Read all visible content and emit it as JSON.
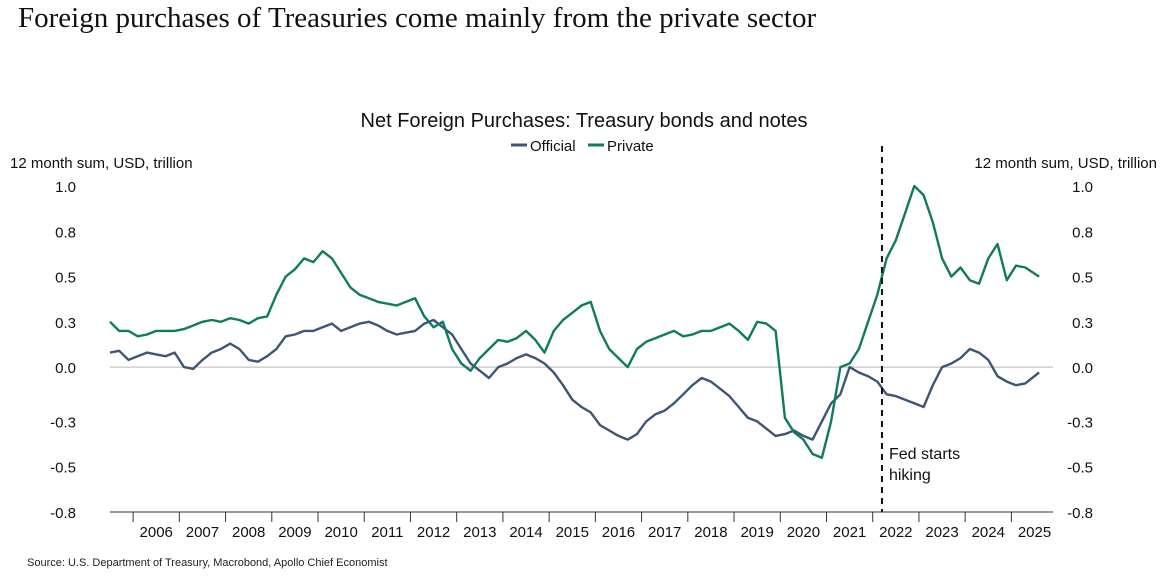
{
  "headline": "Foreign purchases of Treasuries come mainly from the private sector",
  "source": "Source: U.S. Department of Treasury, Macrobond, Apollo Chief Economist",
  "colors": {
    "official": "#3e5673",
    "private": "#0f7b5f",
    "zero_line": "#b8b8b8",
    "text": "#111111"
  },
  "chart_data": {
    "type": "line",
    "title": "Net Foreign Purchases: Treasury bonds and notes",
    "ylabel_left": "12 month sum, USD, trillion",
    "ylabel_right": "12 month sum, USD, trillion",
    "ylim": [
      -0.8,
      1.0
    ],
    "xlim": [
      2005.5,
      2025.9
    ],
    "y_ticks": [
      -0.8,
      -0.55,
      -0.3,
      0.0,
      0.25,
      0.5,
      0.75,
      1.0
    ],
    "y_tick_labels": [
      "-0.8",
      "-0.5",
      "-0.3",
      "0.0",
      "0.3",
      "0.5",
      "0.8",
      "1.0"
    ],
    "x_tick_labels": [
      "2006",
      "2007",
      "2008",
      "2009",
      "2010",
      "2011",
      "2012",
      "2013",
      "2014",
      "2015",
      "2016",
      "2017",
      "2018",
      "2019",
      "2020",
      "2021",
      "2022",
      "2023",
      "2024",
      "2025"
    ],
    "grid": false,
    "legend": [
      "Official",
      "Private"
    ],
    "legend_position": "top-center",
    "annotation": {
      "text_lines": [
        "Fed starts",
        "hiking"
      ],
      "x": 2022.2
    },
    "series": [
      {
        "name": "Official",
        "x": [
          2005.5,
          2005.7,
          2005.9,
          2006.1,
          2006.3,
          2006.5,
          2006.7,
          2006.9,
          2007.1,
          2007.3,
          2007.5,
          2007.7,
          2007.9,
          2008.1,
          2008.3,
          2008.5,
          2008.7,
          2008.9,
          2009.1,
          2009.3,
          2009.5,
          2009.7,
          2009.9,
          2010.1,
          2010.3,
          2010.5,
          2010.7,
          2010.9,
          2011.1,
          2011.3,
          2011.5,
          2011.7,
          2011.9,
          2012.1,
          2012.3,
          2012.5,
          2012.7,
          2012.9,
          2013.1,
          2013.3,
          2013.5,
          2013.7,
          2013.9,
          2014.1,
          2014.3,
          2014.5,
          2014.7,
          2014.9,
          2015.1,
          2015.3,
          2015.5,
          2015.7,
          2015.9,
          2016.1,
          2016.3,
          2016.5,
          2016.7,
          2016.9,
          2017.1,
          2017.3,
          2017.5,
          2017.7,
          2017.9,
          2018.1,
          2018.3,
          2018.5,
          2018.7,
          2018.9,
          2019.1,
          2019.3,
          2019.5,
          2019.7,
          2019.9,
          2020.1,
          2020.3,
          2020.5,
          2020.7,
          2020.9,
          2021.1,
          2021.3,
          2021.5,
          2021.7,
          2021.9,
          2022.1,
          2022.3,
          2022.5,
          2022.7,
          2022.9,
          2023.1,
          2023.3,
          2023.5,
          2023.7,
          2023.9,
          2024.1,
          2024.3,
          2024.5,
          2024.7,
          2024.9,
          2025.1,
          2025.3,
          2025.6
        ],
        "values": [
          0.08,
          0.09,
          0.04,
          0.06,
          0.08,
          0.07,
          0.06,
          0.08,
          0.0,
          -0.01,
          0.04,
          0.08,
          0.1,
          0.13,
          0.1,
          0.04,
          0.03,
          0.06,
          0.1,
          0.17,
          0.18,
          0.2,
          0.2,
          0.22,
          0.24,
          0.2,
          0.22,
          0.24,
          0.25,
          0.23,
          0.2,
          0.18,
          0.19,
          0.2,
          0.24,
          0.26,
          0.22,
          0.18,
          0.1,
          0.02,
          -0.02,
          -0.06,
          0.0,
          0.02,
          0.05,
          0.07,
          0.05,
          0.02,
          -0.03,
          -0.1,
          -0.18,
          -0.22,
          -0.25,
          -0.32,
          -0.35,
          -0.38,
          -0.4,
          -0.37,
          -0.3,
          -0.26,
          -0.24,
          -0.2,
          -0.15,
          -0.1,
          -0.06,
          -0.08,
          -0.12,
          -0.16,
          -0.22,
          -0.28,
          -0.3,
          -0.34,
          -0.38,
          -0.37,
          -0.35,
          -0.38,
          -0.4,
          -0.3,
          -0.2,
          -0.15,
          0.0,
          -0.03,
          -0.05,
          -0.08,
          -0.15,
          -0.16,
          -0.18,
          -0.2,
          -0.22,
          -0.1,
          0.0,
          0.02,
          0.05,
          0.1,
          0.08,
          0.04,
          -0.05,
          -0.08,
          -0.1,
          -0.09,
          -0.03
        ]
      },
      {
        "name": "Private",
        "x": [
          2005.5,
          2005.7,
          2005.9,
          2006.1,
          2006.3,
          2006.5,
          2006.7,
          2006.9,
          2007.1,
          2007.3,
          2007.5,
          2007.7,
          2007.9,
          2008.1,
          2008.3,
          2008.5,
          2008.7,
          2008.9,
          2009.1,
          2009.3,
          2009.5,
          2009.7,
          2009.9,
          2010.1,
          2010.3,
          2010.5,
          2010.7,
          2010.9,
          2011.1,
          2011.3,
          2011.5,
          2011.7,
          2011.9,
          2012.1,
          2012.3,
          2012.5,
          2012.7,
          2012.9,
          2013.1,
          2013.3,
          2013.5,
          2013.7,
          2013.9,
          2014.1,
          2014.3,
          2014.5,
          2014.7,
          2014.9,
          2015.1,
          2015.3,
          2015.5,
          2015.7,
          2015.9,
          2016.1,
          2016.3,
          2016.5,
          2016.7,
          2016.9,
          2017.1,
          2017.3,
          2017.5,
          2017.7,
          2017.9,
          2018.1,
          2018.3,
          2018.5,
          2018.7,
          2018.9,
          2019.1,
          2019.3,
          2019.5,
          2019.7,
          2019.9,
          2020.1,
          2020.3,
          2020.5,
          2020.7,
          2020.9,
          2021.1,
          2021.3,
          2021.5,
          2021.7,
          2021.9,
          2022.1,
          2022.3,
          2022.5,
          2022.7,
          2022.9,
          2023.1,
          2023.3,
          2023.5,
          2023.7,
          2023.9,
          2024.1,
          2024.3,
          2024.5,
          2024.7,
          2024.9,
          2025.1,
          2025.3,
          2025.6
        ],
        "values": [
          0.25,
          0.2,
          0.2,
          0.17,
          0.18,
          0.2,
          0.2,
          0.2,
          0.21,
          0.23,
          0.25,
          0.26,
          0.25,
          0.27,
          0.26,
          0.24,
          0.27,
          0.28,
          0.4,
          0.5,
          0.54,
          0.6,
          0.58,
          0.64,
          0.6,
          0.52,
          0.44,
          0.4,
          0.38,
          0.36,
          0.35,
          0.34,
          0.36,
          0.38,
          0.28,
          0.22,
          0.25,
          0.1,
          0.02,
          -0.02,
          0.05,
          0.1,
          0.15,
          0.14,
          0.16,
          0.2,
          0.15,
          0.08,
          0.2,
          0.26,
          0.3,
          0.34,
          0.36,
          0.2,
          0.1,
          0.05,
          0.0,
          0.1,
          0.14,
          0.16,
          0.18,
          0.2,
          0.17,
          0.18,
          0.2,
          0.2,
          0.22,
          0.24,
          0.2,
          0.15,
          0.25,
          0.24,
          0.2,
          -0.28,
          -0.36,
          -0.4,
          -0.48,
          -0.5,
          -0.3,
          0.0,
          0.02,
          0.1,
          0.25,
          0.4,
          0.6,
          0.7,
          0.85,
          1.0,
          0.95,
          0.8,
          0.6,
          0.5,
          0.55,
          0.48,
          0.46,
          0.6,
          0.68,
          0.48,
          0.56,
          0.55,
          0.5
        ]
      }
    ]
  }
}
